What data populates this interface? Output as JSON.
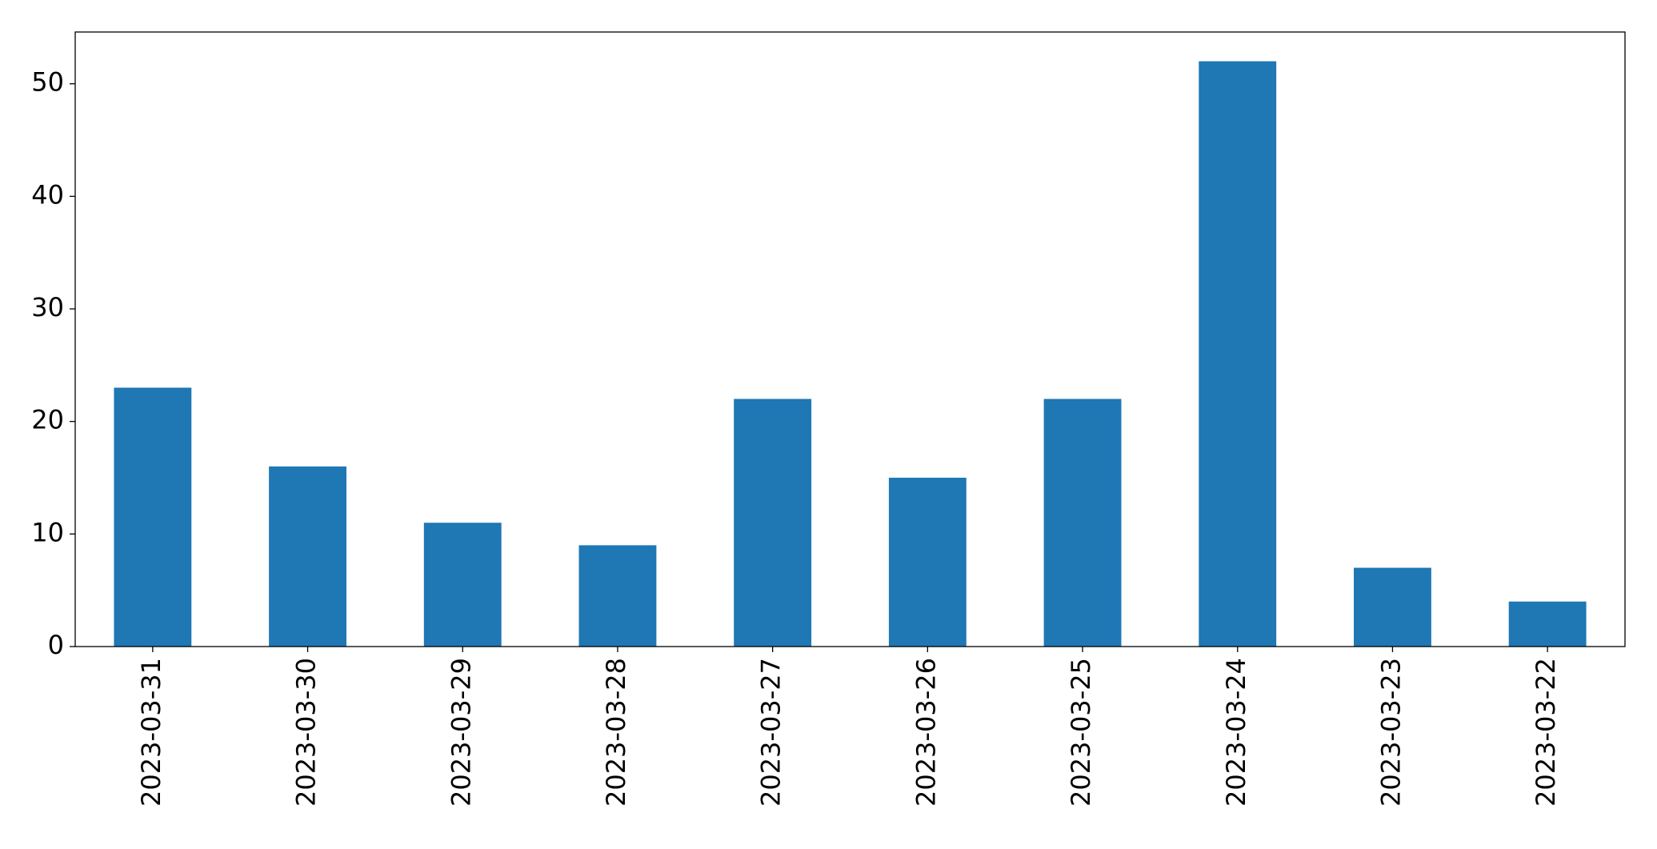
{
  "chart_data": {
    "type": "bar",
    "categories": [
      "2023-03-31",
      "2023-03-30",
      "2023-03-29",
      "2023-03-28",
      "2023-03-27",
      "2023-03-26",
      "2023-03-25",
      "2023-03-24",
      "2023-03-23",
      "2023-03-22"
    ],
    "values": [
      23,
      16,
      11,
      9,
      22,
      15,
      22,
      52,
      7,
      4
    ],
    "color": "#1f77b4",
    "ylim": [
      0,
      54.6
    ],
    "yticks": [
      0,
      10,
      20,
      30,
      40,
      50
    ],
    "grid": false
  }
}
